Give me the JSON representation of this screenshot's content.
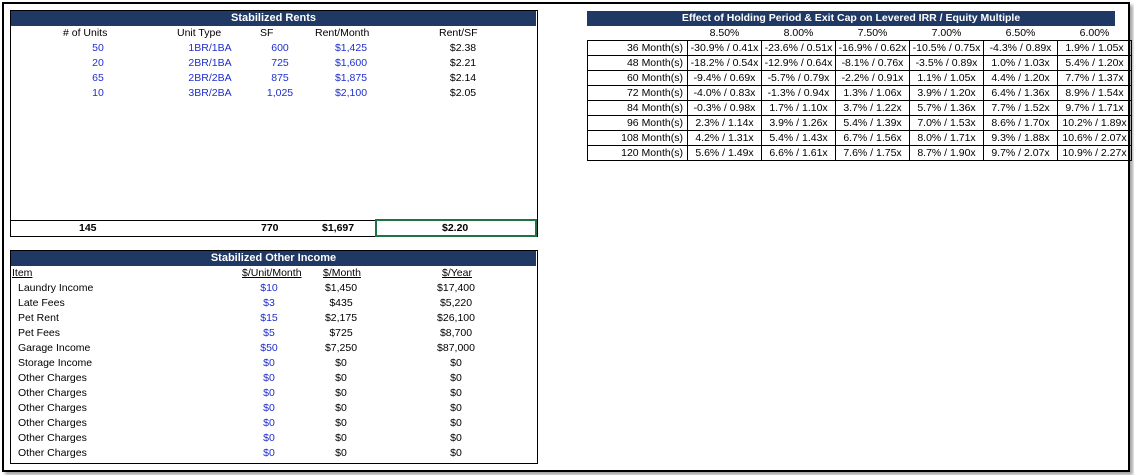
{
  "rents": {
    "title": "Stabilized Rents",
    "headers": [
      "# of Units",
      "Unit Type",
      "SF",
      "Rent/Month",
      "Rent/SF"
    ],
    "rows": [
      [
        "50",
        "1BR/1BA",
        "600",
        "$1,425",
        "$2.38"
      ],
      [
        "20",
        "2BR/1BA",
        "725",
        "$1,600",
        "$2.21"
      ],
      [
        "65",
        "2BR/2BA",
        "875",
        "$1,875",
        "$2.14"
      ],
      [
        "10",
        "3BR/2BA",
        "1,025",
        "$2,100",
        "$2.05"
      ]
    ],
    "totals": {
      "units": "145",
      "sf": "770",
      "rent": "$1,697",
      "rent_sf": "$2.20"
    }
  },
  "other_income": {
    "title": "Stabilized Other Income",
    "headers": [
      "Item",
      "$/Unit/Month",
      "$/Month",
      "$/Year"
    ],
    "rows": [
      [
        "Laundry Income",
        "$10",
        "$1,450",
        "$17,400"
      ],
      [
        "Late Fees",
        "$3",
        "$435",
        "$5,220"
      ],
      [
        "Pet Rent",
        "$15",
        "$2,175",
        "$26,100"
      ],
      [
        "Pet Fees",
        "$5",
        "$725",
        "$8,700"
      ],
      [
        "Garage Income",
        "$50",
        "$7,250",
        "$87,000"
      ],
      [
        "Storage Income",
        "$0",
        "$0",
        "$0"
      ],
      [
        "Other Charges",
        "$0",
        "$0",
        "$0"
      ],
      [
        "Other Charges",
        "$0",
        "$0",
        "$0"
      ],
      [
        "Other Charges",
        "$0",
        "$0",
        "$0"
      ],
      [
        "Other Charges",
        "$0",
        "$0",
        "$0"
      ],
      [
        "Other Charges",
        "$0",
        "$0",
        "$0"
      ],
      [
        "Other Charges",
        "$0",
        "$0",
        "$0"
      ]
    ]
  },
  "sensitivity": {
    "title": "Effect of Holding Period & Exit Cap on Levered IRR / Equity Multiple",
    "caps": [
      "8.50%",
      "8.00%",
      "7.50%",
      "7.00%",
      "6.50%",
      "6.00%"
    ],
    "rows": [
      {
        "label": "36 Month(s)",
        "values": [
          "-30.9% / 0.41x",
          "-23.6% / 0.51x",
          "-16.9% / 0.62x",
          "-10.5% / 0.75x",
          "-4.3% / 0.89x",
          "1.9% / 1.05x"
        ]
      },
      {
        "label": "48 Month(s)",
        "values": [
          "-18.2% / 0.54x",
          "-12.9% / 0.64x",
          "-8.1% / 0.76x",
          "-3.5% / 0.89x",
          "1.0% / 1.03x",
          "5.4% / 1.20x"
        ]
      },
      {
        "label": "60 Month(s)",
        "values": [
          "-9.4% / 0.69x",
          "-5.7% / 0.79x",
          "-2.2% / 0.91x",
          "1.1% / 1.05x",
          "4.4% / 1.20x",
          "7.7% / 1.37x"
        ]
      },
      {
        "label": "72 Month(s)",
        "values": [
          "-4.0% / 0.83x",
          "-1.3% / 0.94x",
          "1.3% / 1.06x",
          "3.9% / 1.20x",
          "6.4% / 1.36x",
          "8.9% / 1.54x"
        ]
      },
      {
        "label": "84 Month(s)",
        "values": [
          "-0.3% / 0.98x",
          "1.7% / 1.10x",
          "3.7% / 1.22x",
          "5.7% / 1.36x",
          "7.7% / 1.52x",
          "9.7% / 1.71x"
        ]
      },
      {
        "label": "96 Month(s)",
        "values": [
          "2.3% / 1.14x",
          "3.9% / 1.26x",
          "5.4% / 1.39x",
          "7.0% / 1.53x",
          "8.6% / 1.70x",
          "10.2% / 1.89x"
        ]
      },
      {
        "label": "108 Month(s)",
        "values": [
          "4.2% / 1.31x",
          "5.4% / 1.43x",
          "6.7% / 1.56x",
          "8.0% / 1.71x",
          "9.3% / 1.88x",
          "10.6% / 2.07x"
        ]
      },
      {
        "label": "120 Month(s)",
        "values": [
          "5.6% / 1.49x",
          "6.6% / 1.61x",
          "7.6% / 1.75x",
          "8.7% / 1.90x",
          "9.7% / 2.07x",
          "10.9% / 2.27x"
        ]
      }
    ]
  }
}
